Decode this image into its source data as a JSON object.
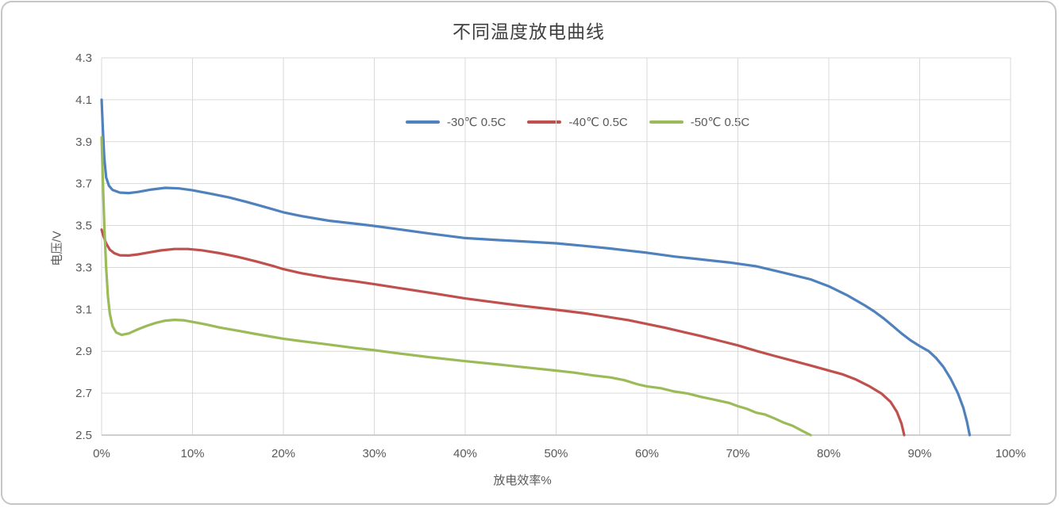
{
  "window": {
    "background": "#ffffff",
    "border_color": "#c6c6c6"
  },
  "chart_data": {
    "type": "line",
    "title": "不同温度放电曲线",
    "xlabel": "放电效率%",
    "ylabel": "电压/V",
    "xlim": [
      0,
      100
    ],
    "ylim": [
      2.5,
      4.3
    ],
    "grid": true,
    "grid_color": "#d9d9d9",
    "axis_color": "#bfbfbf",
    "text_color": "#595959",
    "legend_position": "top-center-inside",
    "x_tick_values": [
      0,
      10,
      20,
      30,
      40,
      50,
      60,
      70,
      80,
      90,
      100
    ],
    "x_ticks": [
      "0%",
      "10%",
      "20%",
      "30%",
      "40%",
      "50%",
      "60%",
      "70%",
      "80%",
      "90%",
      "100%"
    ],
    "y_tick_values": [
      2.5,
      2.7,
      2.9,
      3.1,
      3.3,
      3.5,
      3.7,
      3.9,
      4.1,
      4.3
    ],
    "y_ticks": [
      "2.5",
      "2.7",
      "2.9",
      "3.1",
      "3.3",
      "3.5",
      "3.7",
      "3.9",
      "4.1",
      "4.3"
    ],
    "series": [
      {
        "name": "-30℃ 0.5C",
        "color": "#4F81BD",
        "points": [
          [
            0,
            4.1
          ],
          [
            0.15,
            3.95
          ],
          [
            0.3,
            3.82
          ],
          [
            0.5,
            3.73
          ],
          [
            0.8,
            3.69
          ],
          [
            1.2,
            3.67
          ],
          [
            2,
            3.657
          ],
          [
            3,
            3.655
          ],
          [
            4,
            3.66
          ],
          [
            5.5,
            3.672
          ],
          [
            7,
            3.68
          ],
          [
            8.5,
            3.677
          ],
          [
            10,
            3.668
          ],
          [
            12,
            3.652
          ],
          [
            14,
            3.634
          ],
          [
            16,
            3.612
          ],
          [
            18,
            3.588
          ],
          [
            20,
            3.563
          ],
          [
            22,
            3.545
          ],
          [
            25,
            3.523
          ],
          [
            28,
            3.508
          ],
          [
            30,
            3.498
          ],
          [
            33,
            3.48
          ],
          [
            36,
            3.462
          ],
          [
            40,
            3.44
          ],
          [
            43,
            3.432
          ],
          [
            46,
            3.425
          ],
          [
            50,
            3.415
          ],
          [
            53,
            3.403
          ],
          [
            56,
            3.39
          ],
          [
            58,
            3.38
          ],
          [
            60,
            3.37
          ],
          [
            63,
            3.352
          ],
          [
            66,
            3.338
          ],
          [
            69,
            3.324
          ],
          [
            72,
            3.306
          ],
          [
            75,
            3.275
          ],
          [
            78,
            3.243
          ],
          [
            80,
            3.21
          ],
          [
            82,
            3.168
          ],
          [
            84,
            3.118
          ],
          [
            85,
            3.09
          ],
          [
            86,
            3.058
          ],
          [
            87,
            3.022
          ],
          [
            88,
            2.985
          ],
          [
            89,
            2.952
          ],
          [
            90,
            2.925
          ],
          [
            91,
            2.9
          ],
          [
            91.8,
            2.868
          ],
          [
            92.6,
            2.826
          ],
          [
            93.4,
            2.77
          ],
          [
            94.2,
            2.7
          ],
          [
            94.8,
            2.63
          ],
          [
            95.2,
            2.565
          ],
          [
            95.5,
            2.5
          ]
        ]
      },
      {
        "name": "-40℃ 0.5C",
        "color": "#C0504D",
        "points": [
          [
            0,
            3.48
          ],
          [
            0.2,
            3.45
          ],
          [
            0.5,
            3.415
          ],
          [
            0.9,
            3.385
          ],
          [
            1.4,
            3.368
          ],
          [
            2,
            3.358
          ],
          [
            3,
            3.357
          ],
          [
            4,
            3.362
          ],
          [
            5,
            3.37
          ],
          [
            6.5,
            3.381
          ],
          [
            8,
            3.388
          ],
          [
            9.5,
            3.388
          ],
          [
            11,
            3.382
          ],
          [
            13,
            3.368
          ],
          [
            15,
            3.35
          ],
          [
            17,
            3.329
          ],
          [
            19,
            3.305
          ],
          [
            20,
            3.292
          ],
          [
            22,
            3.272
          ],
          [
            25,
            3.25
          ],
          [
            28,
            3.233
          ],
          [
            30,
            3.22
          ],
          [
            33,
            3.2
          ],
          [
            36,
            3.18
          ],
          [
            40,
            3.152
          ],
          [
            43,
            3.135
          ],
          [
            46,
            3.118
          ],
          [
            50,
            3.098
          ],
          [
            53,
            3.082
          ],
          [
            56,
            3.062
          ],
          [
            58,
            3.048
          ],
          [
            60,
            3.03
          ],
          [
            62,
            3.012
          ],
          [
            64,
            2.992
          ],
          [
            66,
            2.972
          ],
          [
            68,
            2.95
          ],
          [
            70,
            2.928
          ],
          [
            72,
            2.902
          ],
          [
            74,
            2.878
          ],
          [
            76,
            2.855
          ],
          [
            78,
            2.832
          ],
          [
            80,
            2.808
          ],
          [
            81.5,
            2.79
          ],
          [
            83,
            2.765
          ],
          [
            84.5,
            2.732
          ],
          [
            85.8,
            2.698
          ],
          [
            86.8,
            2.658
          ],
          [
            87.5,
            2.61
          ],
          [
            88,
            2.555
          ],
          [
            88.3,
            2.5
          ]
        ]
      },
      {
        "name": "-50℃ 0.5C",
        "color": "#9BBB59",
        "points": [
          [
            0,
            3.92
          ],
          [
            0.15,
            3.7
          ],
          [
            0.3,
            3.5
          ],
          [
            0.5,
            3.3
          ],
          [
            0.7,
            3.16
          ],
          [
            0.9,
            3.08
          ],
          [
            1.2,
            3.02
          ],
          [
            1.6,
            2.99
          ],
          [
            2.2,
            2.978
          ],
          [
            3,
            2.985
          ],
          [
            4,
            3.005
          ],
          [
            5,
            3.022
          ],
          [
            6,
            3.036
          ],
          [
            7,
            3.046
          ],
          [
            8,
            3.05
          ],
          [
            9,
            3.048
          ],
          [
            10,
            3.04
          ],
          [
            11.5,
            3.028
          ],
          [
            13,
            3.013
          ],
          [
            15,
            2.998
          ],
          [
            17,
            2.982
          ],
          [
            19,
            2.967
          ],
          [
            20,
            2.96
          ],
          [
            22,
            2.948
          ],
          [
            25,
            2.932
          ],
          [
            28,
            2.915
          ],
          [
            30,
            2.905
          ],
          [
            33,
            2.888
          ],
          [
            36,
            2.872
          ],
          [
            40,
            2.853
          ],
          [
            43,
            2.84
          ],
          [
            46,
            2.826
          ],
          [
            50,
            2.808
          ],
          [
            52,
            2.798
          ],
          [
            54,
            2.785
          ],
          [
            56,
            2.775
          ],
          [
            57.5,
            2.762
          ],
          [
            59,
            2.742
          ],
          [
            60,
            2.732
          ],
          [
            61.5,
            2.724
          ],
          [
            63,
            2.708
          ],
          [
            64.5,
            2.698
          ],
          [
            66,
            2.682
          ],
          [
            67.5,
            2.668
          ],
          [
            69,
            2.654
          ],
          [
            70,
            2.638
          ],
          [
            71,
            2.625
          ],
          [
            72,
            2.607
          ],
          [
            73,
            2.598
          ],
          [
            74,
            2.58
          ],
          [
            75,
            2.56
          ],
          [
            76,
            2.545
          ],
          [
            77,
            2.522
          ],
          [
            78,
            2.5
          ]
        ]
      }
    ]
  }
}
